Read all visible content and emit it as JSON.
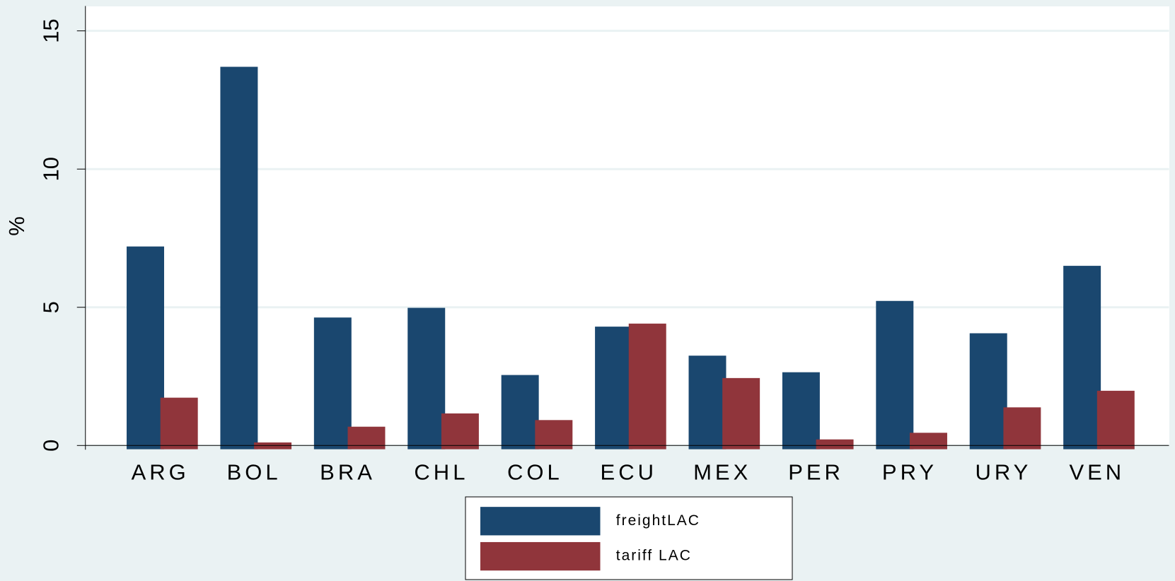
{
  "chart_data": {
    "type": "bar",
    "y_label": "%",
    "categories": [
      "ARG",
      "BOL",
      "BRA",
      "CHL",
      "COL",
      "ECU",
      "MEX",
      "PER",
      "PRY",
      "URY",
      "VEN"
    ],
    "series": [
      {
        "name": "freightLAC",
        "color": "#1a476f",
        "values": [
          7.2,
          13.7,
          4.63,
          4.98,
          2.55,
          4.3,
          3.25,
          2.65,
          5.23,
          4.06,
          6.5
        ]
      },
      {
        "name": "tariff LAC",
        "color": "#90353b",
        "values": [
          1.73,
          0.11,
          0.68,
          1.16,
          0.92,
          4.41,
          2.44,
          0.22,
          0.46,
          1.38,
          1.98
        ]
      }
    ],
    "ylim": [
      0,
      15.9
    ],
    "yticks": [
      0,
      5,
      10,
      15
    ],
    "grid": true
  }
}
